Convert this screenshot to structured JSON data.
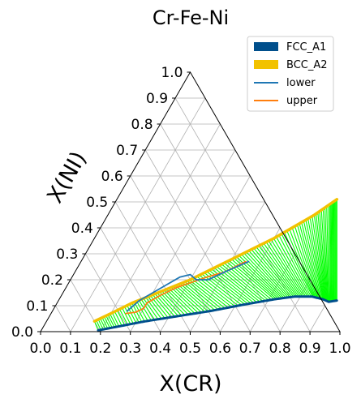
{
  "chart_data": {
    "type": "scatter",
    "subtype": "ternary",
    "title": "Cr-Fe-Ni",
    "xlabel": "X(CR)",
    "ylabel": "X(NI)",
    "xlim": [
      0,
      1
    ],
    "ylim": [
      0,
      1
    ],
    "grid": true,
    "legend_position": "top-right",
    "x_ticks": [
      "0.0",
      "0.1",
      "0.2",
      "0.3",
      "0.4",
      "0.5",
      "0.6",
      "0.7",
      "0.8",
      "0.9",
      "1.0"
    ],
    "y_ticks": [
      "0.0",
      "0.1",
      "0.2",
      "0.3",
      "0.4",
      "0.5",
      "0.6",
      "0.7",
      "0.8",
      "0.9",
      "1.0"
    ],
    "legend": [
      {
        "label": "FCC_A1",
        "kind": "patch",
        "color": "#004f8c"
      },
      {
        "label": "BCC_A2",
        "kind": "patch",
        "color": "#f2c200"
      },
      {
        "label": "lower",
        "kind": "line",
        "color": "#1f77b4"
      },
      {
        "label": "upper",
        "kind": "line",
        "color": "#ff7f0e"
      }
    ],
    "colors": {
      "tieline": "#00ff00",
      "fcc": "#004f8c",
      "bcc": "#f2c200",
      "lower": "#1f77b4",
      "upper": "#ff7f0e"
    },
    "series": [
      {
        "name": "FCC_A1",
        "points": [
          [
            0.19,
            0.005
          ],
          [
            0.25,
            0.02
          ],
          [
            0.33,
            0.04
          ],
          [
            0.43,
            0.06
          ],
          [
            0.53,
            0.08
          ],
          [
            0.63,
            0.105
          ],
          [
            0.72,
            0.125
          ],
          [
            0.78,
            0.135
          ],
          [
            0.84,
            0.135
          ],
          [
            0.88,
            0.125
          ],
          [
            0.905,
            0.115
          ],
          [
            0.93,
            0.12
          ]
        ]
      },
      {
        "name": "BCC_A2",
        "points": [
          [
            0.16,
            0.04
          ],
          [
            0.2,
            0.07
          ],
          [
            0.25,
            0.11
          ],
          [
            0.3,
            0.14
          ],
          [
            0.35,
            0.17
          ],
          [
            0.4,
            0.2
          ],
          [
            0.45,
            0.24
          ],
          [
            0.5,
            0.28
          ],
          [
            0.55,
            0.32
          ],
          [
            0.6,
            0.36
          ],
          [
            0.65,
            0.41
          ],
          [
            0.69,
            0.45
          ],
          [
            0.72,
            0.49
          ],
          [
            0.735,
            0.51
          ]
        ]
      },
      {
        "name": "lower",
        "points": [
          [
            0.25,
            0.08
          ],
          [
            0.27,
            0.12
          ],
          [
            0.3,
            0.15
          ],
          [
            0.33,
            0.18
          ],
          [
            0.36,
            0.21
          ],
          [
            0.39,
            0.22
          ],
          [
            0.42,
            0.2
          ],
          [
            0.46,
            0.2
          ],
          [
            0.5,
            0.23
          ],
          [
            0.56,
            0.27
          ]
        ]
      },
      {
        "name": "upper",
        "points": [
          [
            0.25,
            0.07
          ],
          [
            0.28,
            0.075
          ],
          [
            0.3,
            0.09
          ],
          [
            0.3,
            0.11
          ],
          [
            0.33,
            0.14
          ],
          [
            0.37,
            0.17
          ],
          [
            0.41,
            0.19
          ],
          [
            0.45,
            0.21
          ],
          [
            0.5,
            0.23
          ],
          [
            0.55,
            0.27
          ]
        ]
      }
    ]
  }
}
